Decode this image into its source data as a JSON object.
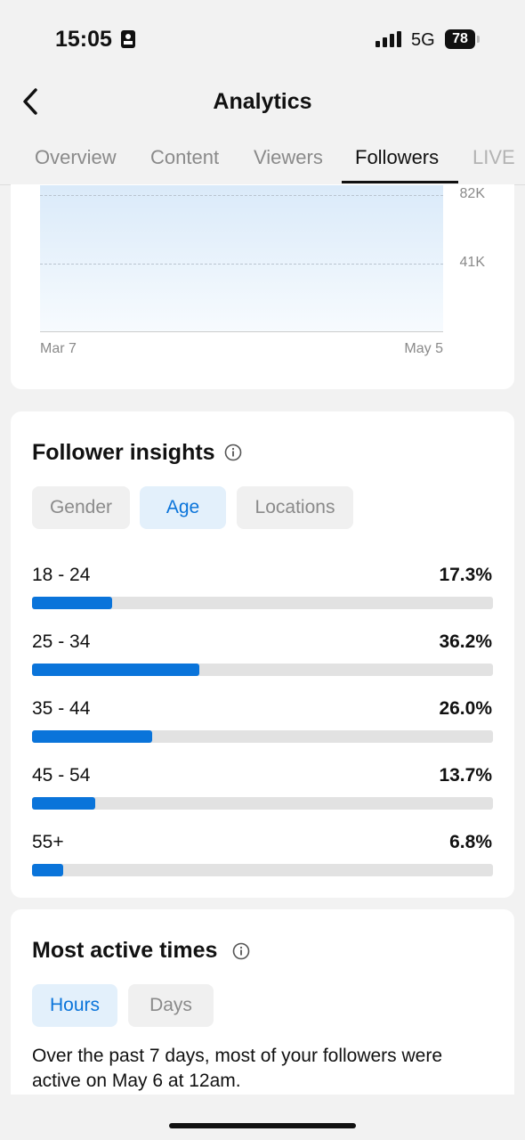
{
  "status_bar": {
    "time": "15:05",
    "network": "5G",
    "battery": "78"
  },
  "header": {
    "title": "Analytics"
  },
  "tabs": {
    "items": [
      "Overview",
      "Content",
      "Viewers",
      "Followers",
      "LIVE"
    ],
    "active": 3
  },
  "followers_chart": {
    "ylim": [
      0,
      82000
    ],
    "yticks": [
      {
        "value": 82000,
        "label": "82K"
      },
      {
        "value": 41000,
        "label": "41K"
      }
    ],
    "x_labels": [
      "Mar 7",
      "May 5"
    ]
  },
  "follower_insights": {
    "title": "Follower insights",
    "filters": [
      "Gender",
      "Age",
      "Locations"
    ],
    "active_filter": 1,
    "age_groups": {
      "categories": [
        "18 - 24",
        "25 - 34",
        "35 - 44",
        "45 - 54",
        "55+"
      ],
      "values": [
        17.3,
        36.2,
        26.0,
        13.7,
        6.8
      ],
      "value_labels": [
        "17.3%",
        "36.2%",
        "26.0%",
        "13.7%",
        "6.8%"
      ],
      "xlim": [
        0,
        100
      ],
      "color": "#0a74da"
    }
  },
  "most_active": {
    "title": "Most active times",
    "filters": [
      "Hours",
      "Days"
    ],
    "active_filter": 0,
    "description": "Over the past 7 days, most of your followers were active on May 6 at 12am."
  }
}
